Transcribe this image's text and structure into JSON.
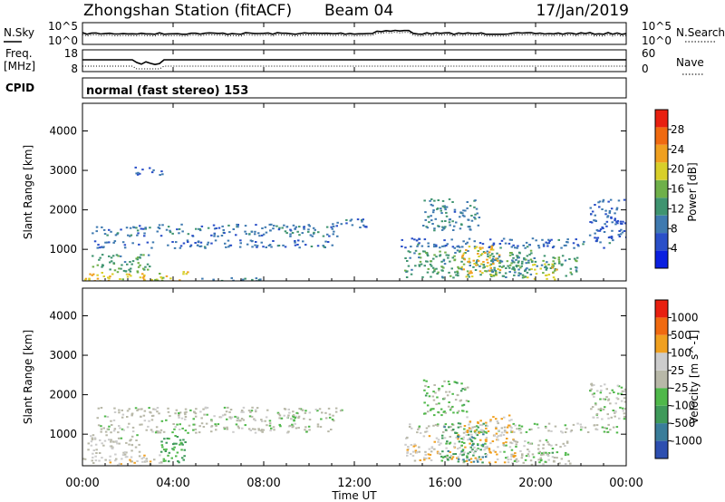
{
  "header": {
    "station": "Zhongshan Station (fitACF)",
    "beam": "Beam 04",
    "date": "17/Jan/2019"
  },
  "panels": {
    "nsky": {
      "label": "N.Sky",
      "left_ticks": [
        "10^5",
        "10^0"
      ],
      "right_ticks": [
        "10^5",
        "10^0"
      ],
      "right_label": "N.Search"
    },
    "freq": {
      "label_line1": "Freq.",
      "label_line2": "[MHz]",
      "left_ticks": [
        "18",
        "8"
      ],
      "right_ticks": [
        "60",
        "0"
      ],
      "right_label": "Nave"
    },
    "cpid": {
      "label": "CPID",
      "text": "normal (fast stereo) 153"
    }
  },
  "chart_data": [
    {
      "type": "heatmap",
      "name": "power",
      "ylabel": "Slant Range [km]",
      "yticks": [
        "1000",
        "2000",
        "3000",
        "4000"
      ],
      "ylim": [
        200,
        4700
      ],
      "colorbar": {
        "label": "Power [dB]",
        "ticks": [
          "4",
          "8",
          "12",
          "16",
          "20",
          "24",
          "28"
        ],
        "range": [
          0,
          32
        ],
        "colors": [
          "#0a1fe0",
          "#2a4fc8",
          "#3f7ab0",
          "#3f9470",
          "#6fb04a",
          "#d8cf2a",
          "#f0a020",
          "#f06a10",
          "#e82010"
        ]
      },
      "regions": [
        {
          "t": [
            0.0,
            4.8
          ],
          "r": [
            200,
            450
          ],
          "v": 20
        },
        {
          "t": [
            0.3,
            3.0
          ],
          "r": [
            450,
            900
          ],
          "v": 13
        },
        {
          "t": [
            0.5,
            11.0
          ],
          "r": [
            1050,
            1250
          ],
          "v": 8
        },
        {
          "t": [
            0.4,
            11.2
          ],
          "r": [
            1350,
            1650
          ],
          "v": 9
        },
        {
          "t": [
            5.0,
            8.0
          ],
          "r": [
            200,
            300
          ],
          "v": 10
        },
        {
          "t": [
            11.0,
            12.5
          ],
          "r": [
            1550,
            1800
          ],
          "v": 8
        },
        {
          "t": [
            14.0,
            23.5
          ],
          "r": [
            1050,
            1300
          ],
          "v": 8
        },
        {
          "t": [
            14.2,
            19.8
          ],
          "r": [
            300,
            1000
          ],
          "v": 13
        },
        {
          "t": [
            16.7,
            18.4
          ],
          "r": [
            300,
            1100
          ],
          "v": 22
        },
        {
          "t": [
            15.0,
            17.5
          ],
          "r": [
            1500,
            2300
          ],
          "v": 10
        },
        {
          "t": [
            18.0,
            22.0
          ],
          "r": [
            350,
            900
          ],
          "v": 12
        },
        {
          "t": [
            19.6,
            21.0
          ],
          "r": [
            250,
            650
          ],
          "v": 20
        },
        {
          "t": [
            22.3,
            24.0
          ],
          "r": [
            1300,
            2300
          ],
          "v": 7
        },
        {
          "t": [
            2.3,
            3.5
          ],
          "r": [
            2900,
            3100
          ],
          "v": 6
        }
      ]
    },
    {
      "type": "heatmap",
      "name": "velocity",
      "ylabel": "Slant Range [km]",
      "yticks": [
        "1000",
        "2000",
        "3000",
        "4000"
      ],
      "ylim": [
        200,
        4700
      ],
      "colorbar": {
        "label": "Velocity [m s^-1]",
        "ticks": [
          "1000",
          "500",
          "100",
          "25",
          "-25",
          "-100",
          "-500",
          "-1000"
        ],
        "range": [
          -1200,
          1200
        ],
        "colors": [
          "#2d4fb0",
          "#3a7d9a",
          "#3f9a5a",
          "#4fb84a",
          "#b8b8a8",
          "#cccccc",
          "#f0a020",
          "#f06a10",
          "#e82010"
        ]
      },
      "regions": [
        {
          "t": [
            0.0,
            3.5
          ],
          "r": [
            200,
            500
          ],
          "v": 200
        },
        {
          "t": [
            0.2,
            2.5
          ],
          "r": [
            500,
            1000
          ],
          "v": 100
        },
        {
          "t": [
            3.4,
            4.6
          ],
          "r": [
            300,
            1000
          ],
          "v": -400
        },
        {
          "t": [
            0.6,
            11.0
          ],
          "r": [
            1050,
            1300
          ],
          "v": 0
        },
        {
          "t": [
            0.6,
            11.5
          ],
          "r": [
            1350,
            1700
          ],
          "v": 0
        },
        {
          "t": [
            14.2,
            23.6
          ],
          "r": [
            1050,
            1300
          ],
          "v": 0
        },
        {
          "t": [
            14.2,
            16.8
          ],
          "r": [
            300,
            1000
          ],
          "v": 300
        },
        {
          "t": [
            15.8,
            17.8
          ],
          "r": [
            300,
            1300
          ],
          "v": -500
        },
        {
          "t": [
            16.8,
            19.2
          ],
          "r": [
            300,
            1500
          ],
          "v": 400
        },
        {
          "t": [
            15.0,
            17.0
          ],
          "r": [
            1500,
            2400
          ],
          "v": -200
        },
        {
          "t": [
            18.5,
            21.5
          ],
          "r": [
            250,
            900
          ],
          "v": 0
        },
        {
          "t": [
            20.0,
            20.8
          ],
          "r": [
            300,
            600
          ],
          "v": -300
        },
        {
          "t": [
            22.3,
            24.0
          ],
          "r": [
            1400,
            2300
          ],
          "v": 0
        }
      ]
    }
  ],
  "xaxis": {
    "label": "Time UT",
    "ticks": [
      "00:00",
      "04:00",
      "08:00",
      "12:00",
      "16:00",
      "20:00",
      "00:00"
    ],
    "xlim": [
      0,
      24
    ]
  }
}
